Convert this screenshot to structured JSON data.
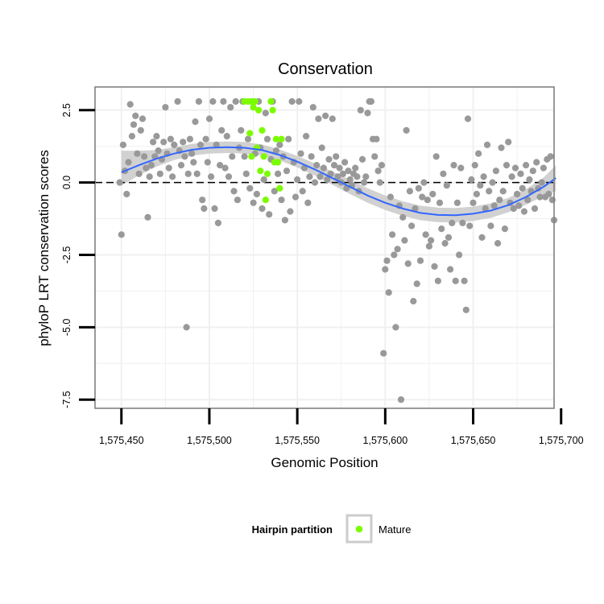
{
  "chart_data": {
    "type": "scatter",
    "title": "Conservation",
    "xlabel": "Genomic Position",
    "ylabel": "phyloP LRT conservation scores",
    "xlim": [
      1575435,
      1575696
    ],
    "ylim": [
      -7.8,
      3.3
    ],
    "x_ticks": [
      1575450,
      1575500,
      1575550,
      1575600,
      1575650,
      1575700
    ],
    "x_tick_labels": [
      "1,575,450",
      "1,575,500",
      "1,575,550",
      "1,575,600",
      "1,575,650",
      "1,575,700"
    ],
    "y_ticks": [
      2.5,
      0.0,
      -2.5,
      -5.0,
      -7.5
    ],
    "y_tick_labels": [
      "2.5",
      "0.0",
      "-2.5",
      "-5.0",
      "-7.5"
    ],
    "reference_line": {
      "y": 0.0,
      "style": "dashed"
    },
    "grid": true,
    "legend": {
      "title": "Hairpin partition",
      "placement": "bottom",
      "entries": [
        {
          "label": "Mature",
          "color": "#7cfc00"
        }
      ]
    },
    "colors": {
      "default_points": "#999999",
      "mature_points": "#7cfc00",
      "smooth_line": "#3366ff",
      "confidence_band": "#cccccc",
      "panel_border": "#808080",
      "gridline": "#f0f0f0"
    },
    "smooth": {
      "x": [
        1575450,
        1575460,
        1575470,
        1575480,
        1575490,
        1575500,
        1575510,
        1575520,
        1575530,
        1575540,
        1575550,
        1575560,
        1575570,
        1575580,
        1575590,
        1575600,
        1575610,
        1575620,
        1575630,
        1575640,
        1575650,
        1575660,
        1575670,
        1575680,
        1575690,
        1575697
      ],
      "y": [
        0.35,
        0.6,
        0.82,
        1.0,
        1.13,
        1.2,
        1.22,
        1.2,
        1.12,
        0.95,
        0.72,
        0.45,
        0.15,
        -0.15,
        -0.45,
        -0.7,
        -0.9,
        -1.05,
        -1.12,
        -1.13,
        -1.08,
        -0.97,
        -0.78,
        -0.5,
        -0.15,
        0.15
      ],
      "lower": [
        -0.1,
        0.25,
        0.55,
        0.78,
        0.93,
        1.0,
        1.02,
        1.0,
        0.93,
        0.76,
        0.52,
        0.24,
        -0.08,
        -0.4,
        -0.7,
        -0.95,
        -1.15,
        -1.3,
        -1.37,
        -1.38,
        -1.33,
        -1.22,
        -1.03,
        -0.77,
        -0.47,
        -0.3
      ],
      "upper": [
        1.1,
        1.1,
        1.12,
        1.22,
        1.33,
        1.4,
        1.42,
        1.4,
        1.31,
        1.14,
        0.92,
        0.66,
        0.38,
        0.1,
        -0.2,
        -0.45,
        -0.65,
        -0.8,
        -0.87,
        -0.88,
        -0.83,
        -0.72,
        -0.53,
        -0.23,
        0.17,
        0.6
      ]
    },
    "series": [
      {
        "name": "",
        "color": "#999999",
        "points": [
          [
            1575449,
            0.0
          ],
          [
            1575450,
            -1.8
          ],
          [
            1575451,
            1.3
          ],
          [
            1575452,
            0.4
          ],
          [
            1575453,
            -0.4
          ],
          [
            1575454,
            0.7
          ],
          [
            1575455,
            2.7
          ],
          [
            1575456,
            1.6
          ],
          [
            1575457,
            2.0
          ],
          [
            1575458,
            2.3
          ],
          [
            1575459,
            1.0
          ],
          [
            1575460,
            0.3
          ],
          [
            1575461,
            1.8
          ],
          [
            1575462,
            2.2
          ],
          [
            1575463,
            0.9
          ],
          [
            1575464,
            0.5
          ],
          [
            1575465,
            -1.2
          ],
          [
            1575466,
            0.2
          ],
          [
            1575467,
            0.6
          ],
          [
            1575468,
            1.4
          ],
          [
            1575469,
            0.9
          ],
          [
            1575470,
            1.6
          ],
          [
            1575471,
            1.1
          ],
          [
            1575472,
            0.3
          ],
          [
            1575473,
            0.8
          ],
          [
            1575474,
            1.4
          ],
          [
            1575475,
            2.6
          ],
          [
            1575476,
            1.0
          ],
          [
            1575477,
            0.5
          ],
          [
            1575478,
            1.5
          ],
          [
            1575479,
            0.2
          ],
          [
            1575480,
            1.3
          ],
          [
            1575482,
            2.8
          ],
          [
            1575483,
            1.1
          ],
          [
            1575484,
            0.6
          ],
          [
            1575485,
            1.4
          ],
          [
            1575486,
            0.9
          ],
          [
            1575487,
            -5.0
          ],
          [
            1575488,
            0.3
          ],
          [
            1575489,
            1.5
          ],
          [
            1575490,
            1.0
          ],
          [
            1575491,
            0.7
          ],
          [
            1575492,
            2.1
          ],
          [
            1575493,
            0.3
          ],
          [
            1575494,
            2.8
          ],
          [
            1575495,
            1.3
          ],
          [
            1575496,
            -0.6
          ],
          [
            1575497,
            -0.9
          ],
          [
            1575498,
            1.5
          ],
          [
            1575499,
            0.7
          ],
          [
            1575500,
            2.2
          ],
          [
            1575501,
            0.2
          ],
          [
            1575502,
            2.8
          ],
          [
            1575503,
            -0.9
          ],
          [
            1575504,
            1.3
          ],
          [
            1575505,
            -1.4
          ],
          [
            1575506,
            0.6
          ],
          [
            1575507,
            1.8
          ],
          [
            1575508,
            2.8
          ],
          [
            1575509,
            0.5
          ],
          [
            1575510,
            1.6
          ],
          [
            1575511,
            0.2
          ],
          [
            1575512,
            2.6
          ],
          [
            1575513,
            0.9
          ],
          [
            1575514,
            -0.3
          ],
          [
            1575515,
            2.8
          ],
          [
            1575516,
            -0.6
          ],
          [
            1575517,
            1.2
          ],
          [
            1575518,
            1.8
          ],
          [
            1575519,
            2.8
          ],
          [
            1575520,
            0.9
          ],
          [
            1575521,
            0.3
          ],
          [
            1575522,
            1.5
          ],
          [
            1575523,
            -0.2
          ],
          [
            1575524,
            2.8
          ],
          [
            1575525,
            -0.7
          ],
          [
            1575526,
            1.0
          ],
          [
            1575527,
            -0.4
          ],
          [
            1575528,
            2.8
          ],
          [
            1575529,
            1.2
          ],
          [
            1575530,
            -0.9
          ],
          [
            1575531,
            0.1
          ],
          [
            1575532,
            2.4
          ],
          [
            1575533,
            1.5
          ],
          [
            1575534,
            -1.1
          ],
          [
            1575535,
            0.8
          ],
          [
            1575536,
            2.8
          ],
          [
            1575537,
            -0.3
          ],
          [
            1575538,
            1.1
          ],
          [
            1575539,
            0.3
          ],
          [
            1575540,
            1.3
          ],
          [
            1575541,
            -0.6
          ],
          [
            1575542,
            0.9
          ],
          [
            1575543,
            -1.3
          ],
          [
            1575544,
            0.4
          ],
          [
            1575545,
            1.5
          ],
          [
            1575546,
            -1.0
          ],
          [
            1575547,
            2.8
          ],
          [
            1575548,
            0.7
          ],
          [
            1575549,
            -0.5
          ],
          [
            1575550,
            0.1
          ],
          [
            1575551,
            2.8
          ],
          [
            1575552,
            1.0
          ],
          [
            1575553,
            -0.3
          ],
          [
            1575554,
            0.5
          ],
          [
            1575555,
            1.6
          ],
          [
            1575556,
            -0.7
          ],
          [
            1575557,
            0.2
          ],
          [
            1575558,
            0.9
          ],
          [
            1575559,
            2.6
          ],
          [
            1575560,
            0.0
          ],
          [
            1575561,
            0.6
          ],
          [
            1575562,
            2.2
          ],
          [
            1575563,
            0.2
          ],
          [
            1575564,
            1.2
          ],
          [
            1575565,
            0.5
          ],
          [
            1575566,
            2.3
          ],
          [
            1575567,
            0.1
          ],
          [
            1575568,
            0.8
          ],
          [
            1575569,
            0.3
          ],
          [
            1575570,
            2.2
          ],
          [
            1575571,
            0.6
          ],
          [
            1575572,
            0.9
          ],
          [
            1575573,
            0.2
          ],
          [
            1575574,
            0.5
          ],
          [
            1575575,
            0.0
          ],
          [
            1575576,
            0.3
          ],
          [
            1575577,
            0.7
          ],
          [
            1575578,
            -0.2
          ],
          [
            1575579,
            0.4
          ],
          [
            1575580,
            0.1
          ],
          [
            1575581,
            -0.1
          ],
          [
            1575582,
            0.3
          ],
          [
            1575583,
            0.5
          ],
          [
            1575584,
            0.2
          ],
          [
            1575585,
            -0.3
          ],
          [
            1575586,
            2.5
          ],
          [
            1575587,
            0.8
          ],
          [
            1575588,
            0.0
          ],
          [
            1575589,
            0.2
          ],
          [
            1575590,
            2.4
          ],
          [
            1575591,
            2.8
          ],
          [
            1575592,
            2.8
          ],
          [
            1575593,
            1.5
          ],
          [
            1575594,
            0.9
          ],
          [
            1575595,
            1.5
          ],
          [
            1575596,
            0.4
          ],
          [
            1575597,
            0.0
          ],
          [
            1575598,
            0.6
          ],
          [
            1575599,
            -5.9
          ],
          [
            1575600,
            -3.0
          ],
          [
            1575601,
            -2.7
          ],
          [
            1575602,
            -3.8
          ],
          [
            1575603,
            -0.5
          ],
          [
            1575604,
            -1.8
          ],
          [
            1575605,
            -2.5
          ],
          [
            1575606,
            -5.0
          ],
          [
            1575607,
            -2.3
          ],
          [
            1575608,
            -0.8
          ],
          [
            1575609,
            -7.5
          ],
          [
            1575610,
            -1.2
          ],
          [
            1575611,
            -2.0
          ],
          [
            1575612,
            1.8
          ],
          [
            1575613,
            -2.8
          ],
          [
            1575614,
            -0.3
          ],
          [
            1575615,
            -1.5
          ],
          [
            1575616,
            -4.1
          ],
          [
            1575617,
            -0.9
          ],
          [
            1575618,
            -3.5
          ],
          [
            1575619,
            -0.2
          ],
          [
            1575620,
            -2.7
          ],
          [
            1575621,
            -0.5
          ],
          [
            1575622,
            0.0
          ],
          [
            1575623,
            -1.8
          ],
          [
            1575624,
            -0.6
          ],
          [
            1575625,
            -2.2
          ],
          [
            1575626,
            -2.0
          ],
          [
            1575627,
            -0.4
          ],
          [
            1575628,
            -2.9
          ],
          [
            1575629,
            0.9
          ],
          [
            1575630,
            -3.4
          ],
          [
            1575631,
            -0.7
          ],
          [
            1575632,
            -1.6
          ],
          [
            1575633,
            0.3
          ],
          [
            1575634,
            -2.1
          ],
          [
            1575635,
            -0.1
          ],
          [
            1575636,
            -1.9
          ],
          [
            1575637,
            -3.0
          ],
          [
            1575638,
            -1.4
          ],
          [
            1575639,
            0.6
          ],
          [
            1575640,
            -3.4
          ],
          [
            1575641,
            -0.7
          ],
          [
            1575642,
            -2.5
          ],
          [
            1575643,
            0.5
          ],
          [
            1575644,
            -1.4
          ],
          [
            1575645,
            -3.4
          ],
          [
            1575646,
            -4.4
          ],
          [
            1575647,
            2.2
          ],
          [
            1575648,
            -1.5
          ],
          [
            1575649,
            0.1
          ],
          [
            1575650,
            -0.7
          ],
          [
            1575651,
            0.6
          ],
          [
            1575652,
            -0.4
          ],
          [
            1575653,
            1.0
          ],
          [
            1575654,
            -0.1
          ],
          [
            1575655,
            -1.9
          ],
          [
            1575656,
            0.2
          ],
          [
            1575657,
            -0.9
          ],
          [
            1575658,
            1.3
          ],
          [
            1575659,
            -0.3
          ],
          [
            1575660,
            -1.5
          ],
          [
            1575661,
            0.0
          ],
          [
            1575662,
            -0.8
          ],
          [
            1575663,
            0.4
          ],
          [
            1575664,
            -2.1
          ],
          [
            1575665,
            -0.6
          ],
          [
            1575666,
            1.2
          ],
          [
            1575667,
            -0.3
          ],
          [
            1575668,
            -1.6
          ],
          [
            1575669,
            0.6
          ],
          [
            1575670,
            1.4
          ],
          [
            1575671,
            -0.7
          ],
          [
            1575672,
            0.2
          ],
          [
            1575673,
            -0.9
          ],
          [
            1575674,
            0.5
          ],
          [
            1575675,
            -0.4
          ],
          [
            1575676,
            -0.8
          ],
          [
            1575677,
            0.3
          ],
          [
            1575678,
            -0.2
          ],
          [
            1575679,
            -1.0
          ],
          [
            1575680,
            0.6
          ],
          [
            1575681,
            -0.6
          ],
          [
            1575682,
            0.1
          ],
          [
            1575683,
            -0.3
          ],
          [
            1575684,
            0.4
          ],
          [
            1575685,
            -0.9
          ],
          [
            1575686,
            0.7
          ],
          [
            1575687,
            -0.2
          ],
          [
            1575688,
            -0.5
          ],
          [
            1575689,
            0.0
          ],
          [
            1575690,
            0.5
          ],
          [
            1575691,
            -0.5
          ],
          [
            1575692,
            0.8
          ],
          [
            1575693,
            -0.4
          ],
          [
            1575694,
            0.9
          ],
          [
            1575695,
            -0.6
          ],
          [
            1575696,
            -1.3
          ]
        ]
      },
      {
        "name": "Mature",
        "color": "#7cfc00",
        "points": [
          [
            1575520,
            2.8
          ],
          [
            1575522,
            2.8
          ],
          [
            1575523,
            1.7
          ],
          [
            1575524,
            2.8
          ],
          [
            1575524,
            0.9
          ],
          [
            1575525,
            2.6
          ],
          [
            1575526,
            2.8
          ],
          [
            1575527,
            1.2
          ],
          [
            1575528,
            2.5
          ],
          [
            1575529,
            0.4
          ],
          [
            1575530,
            1.8
          ],
          [
            1575531,
            0.9
          ],
          [
            1575532,
            -0.6
          ],
          [
            1575533,
            0.3
          ],
          [
            1575535,
            2.8
          ],
          [
            1575536,
            2.5
          ],
          [
            1575537,
            0.7
          ],
          [
            1575538,
            1.5
          ],
          [
            1575539,
            0.7
          ],
          [
            1575540,
            -0.2
          ],
          [
            1575541,
            1.5
          ]
        ]
      }
    ]
  }
}
